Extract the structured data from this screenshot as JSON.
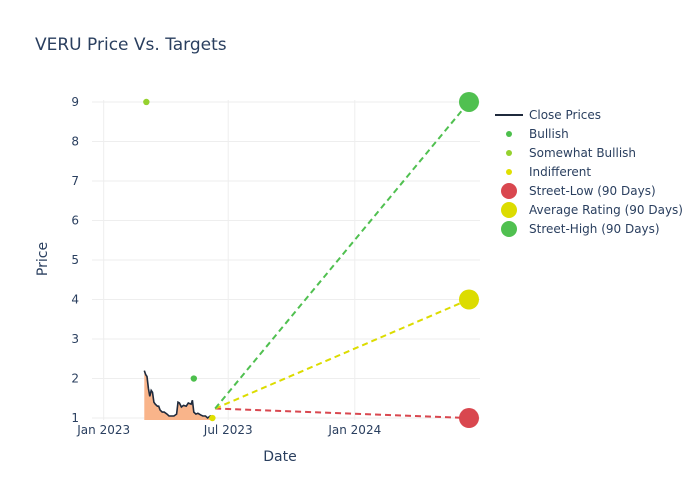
{
  "chart_data": {
    "type": "line",
    "title": "VERU Price Vs. Targets",
    "xlabel": "Date",
    "ylabel": "Price",
    "ylim": [
      0.95,
      9.05
    ],
    "xlim": [
      "2022-12-15",
      "2024-07-01"
    ],
    "x_ticks": [
      {
        "date": "2023-01-01",
        "label": "Jan 2023"
      },
      {
        "date": "2023-07-01",
        "label": "Jul 2023"
      },
      {
        "date": "2024-01-01",
        "label": "Jan 2024"
      }
    ],
    "y_ticks": [
      1,
      2,
      3,
      4,
      5,
      6,
      7,
      8,
      9
    ],
    "grid": true,
    "legend_position": "right",
    "close_prices": {
      "name": "Close Prices",
      "color": "#1f2a3c",
      "fill_color": "#f9b48a",
      "points": [
        [
          "2023-03-01",
          2.2
        ],
        [
          "2023-03-03",
          2.1
        ],
        [
          "2023-03-05",
          2.05
        ],
        [
          "2023-03-07",
          1.75
        ],
        [
          "2023-03-09",
          1.55
        ],
        [
          "2023-03-11",
          1.7
        ],
        [
          "2023-03-13",
          1.65
        ],
        [
          "2023-03-15",
          1.4
        ],
        [
          "2023-03-17",
          1.35
        ],
        [
          "2023-03-20",
          1.3
        ],
        [
          "2023-03-22",
          1.3
        ],
        [
          "2023-03-24",
          1.2
        ],
        [
          "2023-03-27",
          1.15
        ],
        [
          "2023-03-30",
          1.15
        ],
        [
          "2023-04-03",
          1.1
        ],
        [
          "2023-04-06",
          1.05
        ],
        [
          "2023-04-10",
          1.05
        ],
        [
          "2023-04-13",
          1.05
        ],
        [
          "2023-04-17",
          1.1
        ],
        [
          "2023-04-19",
          1.4
        ],
        [
          "2023-04-21",
          1.38
        ],
        [
          "2023-04-24",
          1.28
        ],
        [
          "2023-04-27",
          1.32
        ],
        [
          "2023-05-01",
          1.3
        ],
        [
          "2023-05-04",
          1.38
        ],
        [
          "2023-05-08",
          1.35
        ],
        [
          "2023-05-10",
          1.45
        ],
        [
          "2023-05-12",
          1.15
        ],
        [
          "2023-05-15",
          1.1
        ],
        [
          "2023-05-18",
          1.12
        ],
        [
          "2023-05-22",
          1.08
        ],
        [
          "2023-05-25",
          1.05
        ],
        [
          "2023-05-29",
          1.05
        ],
        [
          "2023-06-01",
          1.0
        ],
        [
          "2023-06-05",
          1.05
        ],
        [
          "2023-06-08",
          1.02
        ]
      ]
    },
    "ratings": [
      {
        "name": "Bullish",
        "color": "#4cbf4c",
        "points": [
          [
            "2023-05-12",
            2
          ]
        ]
      },
      {
        "name": "Somewhat Bullish",
        "color": "#95d12e",
        "points": [
          [
            "2023-03-04",
            9
          ]
        ]
      },
      {
        "name": "Indifferent",
        "color": "#e0e000",
        "points": [
          [
            "2023-06-08",
            1
          ]
        ]
      }
    ],
    "targets": {
      "start_date": "2023-06-12",
      "start_price": 1.24,
      "end_date": "2024-06-15",
      "lines": [
        {
          "name": "Street-Low (90 Days)",
          "color": "#d9474f",
          "value": 1
        },
        {
          "name": "Average Rating (90 Days)",
          "color": "#dcdc00",
          "value": 4
        },
        {
          "name": "Street-High (90 Days)",
          "color": "#50c050",
          "value": 9
        }
      ],
      "line_starts": {
        "Street-Low (90 Days)": 1.24,
        "Average Rating (90 Days)": 1.24,
        "Street-High (90 Days)": 1.24
      }
    },
    "legend": [
      {
        "name": "Close Prices",
        "symbol": "line",
        "color": "#1f2a3c"
      },
      {
        "name": "Bullish",
        "symbol": "small-dot",
        "color": "#4cbf4c"
      },
      {
        "name": "Somewhat Bullish",
        "symbol": "small-dot",
        "color": "#95d12e"
      },
      {
        "name": "Indifferent",
        "symbol": "small-dot",
        "color": "#e0e000"
      },
      {
        "name": "Street-Low (90 Days)",
        "symbol": "big-dot",
        "color": "#d9474f"
      },
      {
        "name": "Average Rating (90 Days)",
        "symbol": "big-dot",
        "color": "#dcdc00"
      },
      {
        "name": "Street-High (90 Days)",
        "symbol": "big-dot",
        "color": "#50c050"
      }
    ]
  }
}
